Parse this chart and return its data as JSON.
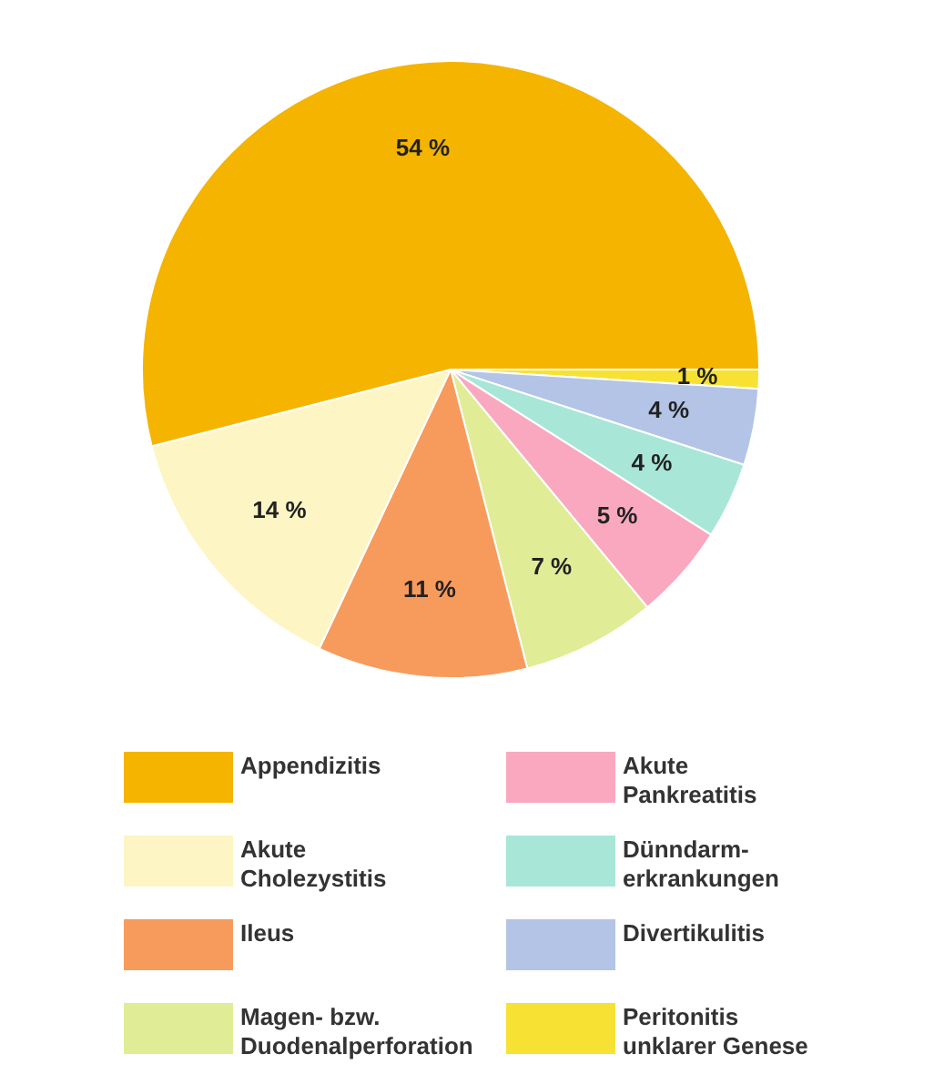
{
  "chart_data": {
    "type": "pie",
    "categories": [
      "Appendizitis",
      "Akute\nCholezystitis",
      "Ileus",
      "Magen- bzw.\nDuodenalperforation",
      "Akute\nPankreatitis",
      "Dünndarm-\nerkrankungen",
      "Divertikulitis",
      "Peritonitis\nunklarer Genese"
    ],
    "values": [
      54,
      14,
      11,
      7,
      5,
      4,
      4,
      1
    ],
    "colors": [
      "#f5b400",
      "#fdf5c4",
      "#f79b5c",
      "#e1ec96",
      "#f9a8c0",
      "#a8e6d8",
      "#b3c4e6",
      "#f7e234"
    ],
    "value_labels": [
      "54 %",
      "14 %",
      "11 %",
      "7 %",
      "5 %",
      "4 %",
      "4 %",
      "1 %"
    ],
    "legend": "bottom"
  }
}
